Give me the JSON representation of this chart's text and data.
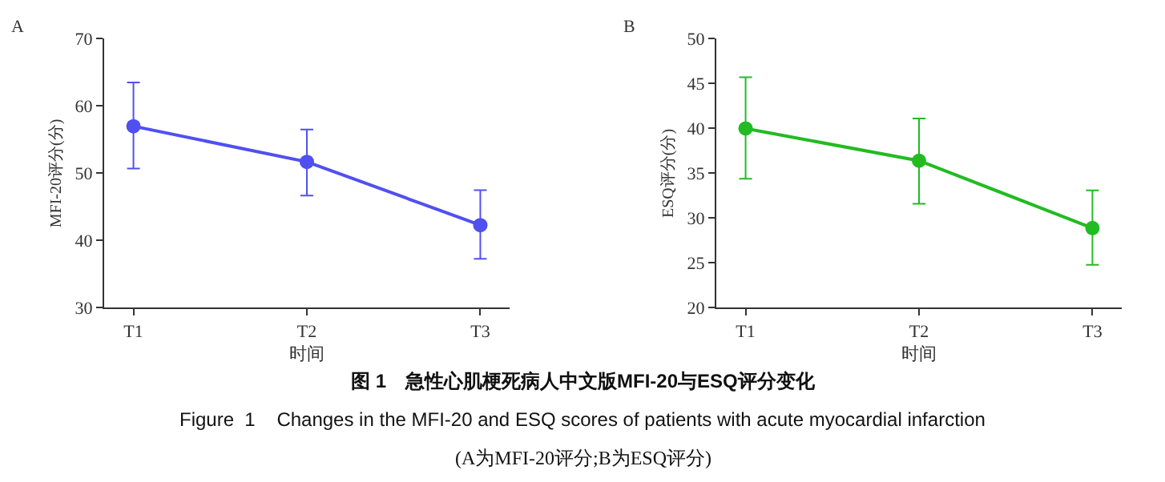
{
  "chart_data": [
    {
      "type": "line",
      "title": "A",
      "xlabel": "时间",
      "ylabel": "MFI-20评分(分)",
      "categories": [
        "T1",
        "T2",
        "T3"
      ],
      "series": [
        {
          "color": "#5050f0",
          "values": [
            57.0,
            51.7,
            42.3
          ],
          "errors": [
            [
              50.7,
              63.5
            ],
            [
              46.7,
              56.5
            ],
            [
              37.3,
              47.5
            ]
          ]
        }
      ],
      "ylim": [
        30,
        70
      ],
      "yticks": [
        30,
        40,
        50,
        60,
        70
      ],
      "marker": "circle",
      "line_style": "solid",
      "annotations": [
        "图 1　急性心肌梗死病人中文版MFI-20与ESQ评分变化",
        "Figure  1    Changes in the MFI-20 and ESQ scores of patients with acute myocardial infarction",
        "(A为MFI-20评分;B为ESQ评分)"
      ]
    },
    {
      "type": "line",
      "title": "B",
      "xlabel": "时间",
      "ylabel": "ESQ评分(分)",
      "categories": [
        "T1",
        "T2",
        "T3"
      ],
      "series": [
        {
          "color": "#22bb22",
          "values": [
            40.0,
            36.4,
            28.9
          ],
          "errors": [
            [
              34.4,
              45.7
            ],
            [
              31.6,
              41.1
            ],
            [
              24.8,
              33.1
            ]
          ]
        }
      ],
      "ylim": [
        20,
        50
      ],
      "yticks": [
        20,
        25,
        30,
        35,
        40,
        45,
        50
      ],
      "marker": "circle",
      "line_style": "solid"
    }
  ]
}
